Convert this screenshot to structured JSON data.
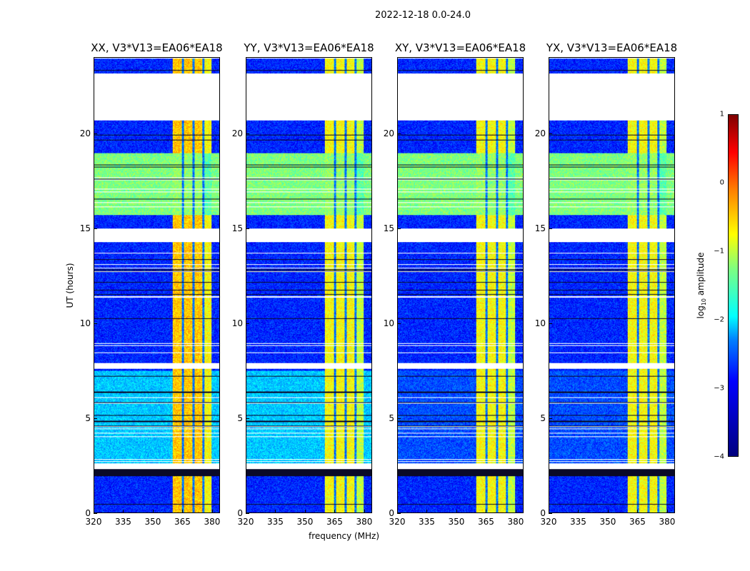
{
  "figure_title": "2022-12-18 0.0-24.0",
  "chart_data": {
    "type": "heatmap",
    "panels": [
      {
        "title": "XX, V3*V13=EA06*EA18",
        "band_level": -0.6,
        "day_level": -2.4
      },
      {
        "title": "YY, V3*V13=EA06*EA18",
        "band_level": -0.9,
        "day_level": -2.4
      },
      {
        "title": "XY, V3*V13=EA06*EA18",
        "band_level": -0.9,
        "day_level": -3.0
      },
      {
        "title": "YX, V3*V13=EA06*EA18",
        "band_level": -0.9,
        "day_level": -3.0
      }
    ],
    "xlabel": "frequency (MHz)",
    "ylabel": "UT (hours)",
    "xlim": [
      320,
      384
    ],
    "ylim": [
      0,
      24
    ],
    "xticks": [
      "320",
      "335",
      "350",
      "365",
      "380"
    ],
    "xtick_values": [
      320,
      335,
      350,
      365,
      380
    ],
    "yticks": [
      "0",
      "5",
      "10",
      "15",
      "20"
    ],
    "ytick_values": [
      0,
      5,
      10,
      15,
      20
    ],
    "bright_band_mhz": [
      360,
      380
    ],
    "flagged_hours": [
      [
        20.7,
        23.2
      ],
      [
        14.3,
        15.0
      ],
      [
        2.3,
        2.6
      ],
      [
        7.6,
        7.85
      ]
    ],
    "greenish_hours": [
      15.7,
      19.0
    ],
    "colormap": "jet",
    "colorbar": {
      "label": "log10 amplitude",
      "label_main": "log",
      "label_sub": "10",
      "label_rest": " amplitude",
      "range": [
        -4,
        1
      ],
      "ticks": [
        "1",
        "0",
        "−1",
        "−2",
        "−3",
        "−4"
      ],
      "tick_values": [
        1,
        0,
        -1,
        -2,
        -3,
        -4
      ]
    }
  }
}
